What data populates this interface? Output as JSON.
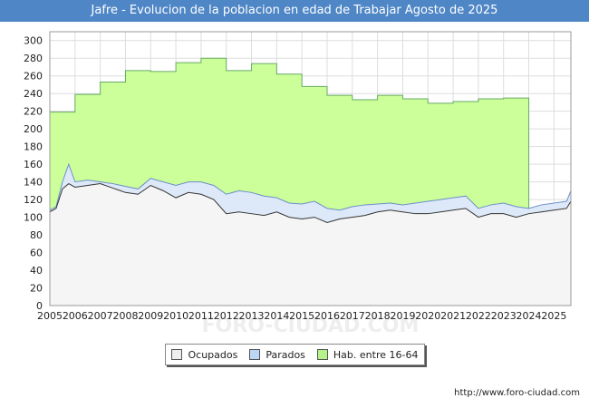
{
  "chart_data": {
    "type": "area",
    "title": "Jafre - Evolucion de la poblacion en edad de Trabajar Agosto de 2025",
    "xlabel": "",
    "ylabel": "",
    "x_ticks": [
      "2005",
      "2006",
      "2007",
      "2008",
      "2009",
      "2010",
      "2011",
      "2012",
      "2013",
      "2014",
      "2015",
      "2016",
      "2017",
      "2018",
      "2019",
      "2020",
      "2021",
      "2022",
      "2023",
      "2024",
      "2025"
    ],
    "y_ticks": [
      0,
      20,
      40,
      60,
      80,
      100,
      120,
      140,
      160,
      180,
      200,
      220,
      240,
      260,
      280,
      300
    ],
    "xlim": [
      2005,
      2025.67
    ],
    "ylim": [
      0,
      310
    ],
    "grid": true,
    "legend_position": "bottom-center",
    "series": [
      {
        "name": "Hab. entre 16-64",
        "color": "#ccff99",
        "line_color": "#66aa66",
        "x": [
          2005,
          2006,
          2007,
          2008,
          2009,
          2010,
          2011,
          2012,
          2013,
          2014,
          2015,
          2016,
          2017,
          2018,
          2019,
          2020,
          2021,
          2022,
          2023,
          2024
        ],
        "values": [
          219,
          239,
          253,
          266,
          265,
          275,
          280,
          266,
          274,
          262,
          248,
          238,
          233,
          238,
          234,
          229,
          231,
          234,
          235,
          null
        ]
      },
      {
        "name": "Parados",
        "color": "#dde9f9",
        "line_color": "#6b8fc8",
        "x": [
          2005.0,
          2005.25,
          2005.5,
          2005.75,
          2006.0,
          2006.5,
          2007.0,
          2007.5,
          2008.0,
          2008.5,
          2009.0,
          2009.5,
          2010.0,
          2010.5,
          2011.0,
          2011.5,
          2012.0,
          2012.5,
          2013.0,
          2013.5,
          2014.0,
          2014.5,
          2015.0,
          2015.5,
          2016.0,
          2016.5,
          2017.0,
          2017.5,
          2018.0,
          2018.5,
          2019.0,
          2019.5,
          2020.0,
          2020.5,
          2021.0,
          2021.5,
          2022.0,
          2022.5,
          2023.0,
          2023.5,
          2024.0,
          2024.5,
          2025.0,
          2025.5,
          2025.67
        ],
        "values": [
          108,
          112,
          140,
          160,
          140,
          142,
          140,
          138,
          135,
          132,
          144,
          140,
          136,
          140,
          140,
          136,
          126,
          130,
          128,
          124,
          122,
          116,
          115,
          118,
          110,
          108,
          112,
          114,
          115,
          116,
          114,
          116,
          118,
          120,
          122,
          124,
          110,
          114,
          116,
          112,
          110,
          114,
          116,
          118,
          130
        ]
      },
      {
        "name": "Ocupados",
        "color": "#f5f5f5",
        "line_color": "#333333",
        "x": [
          2005.0,
          2005.25,
          2005.5,
          2005.75,
          2006.0,
          2006.5,
          2007.0,
          2007.5,
          2008.0,
          2008.5,
          2009.0,
          2009.5,
          2010.0,
          2010.5,
          2011.0,
          2011.5,
          2012.0,
          2012.5,
          2013.0,
          2013.5,
          2014.0,
          2014.5,
          2015.0,
          2015.5,
          2016.0,
          2016.5,
          2017.0,
          2017.5,
          2018.0,
          2018.5,
          2019.0,
          2019.5,
          2020.0,
          2020.5,
          2021.0,
          2021.5,
          2022.0,
          2022.5,
          2023.0,
          2023.5,
          2024.0,
          2024.5,
          2025.0,
          2025.5,
          2025.67
        ],
        "values": [
          106,
          110,
          132,
          138,
          134,
          136,
          138,
          133,
          128,
          126,
          136,
          130,
          122,
          128,
          126,
          120,
          104,
          106,
          104,
          102,
          106,
          100,
          98,
          100,
          94,
          98,
          100,
          102,
          106,
          108,
          106,
          104,
          104,
          106,
          108,
          110,
          100,
          104,
          104,
          100,
          104,
          106,
          108,
          110,
          118
        ]
      }
    ]
  },
  "legend": {
    "items": [
      {
        "label": "Ocupados",
        "color": "#eeeeee"
      },
      {
        "label": "Parados",
        "color": "#bcd7f5"
      },
      {
        "label": "Hab. entre 16-64",
        "color": "#b6f28a"
      }
    ]
  },
  "watermark": "FORO-CIUDAD.COM",
  "source": "http://www.foro-ciudad.com"
}
